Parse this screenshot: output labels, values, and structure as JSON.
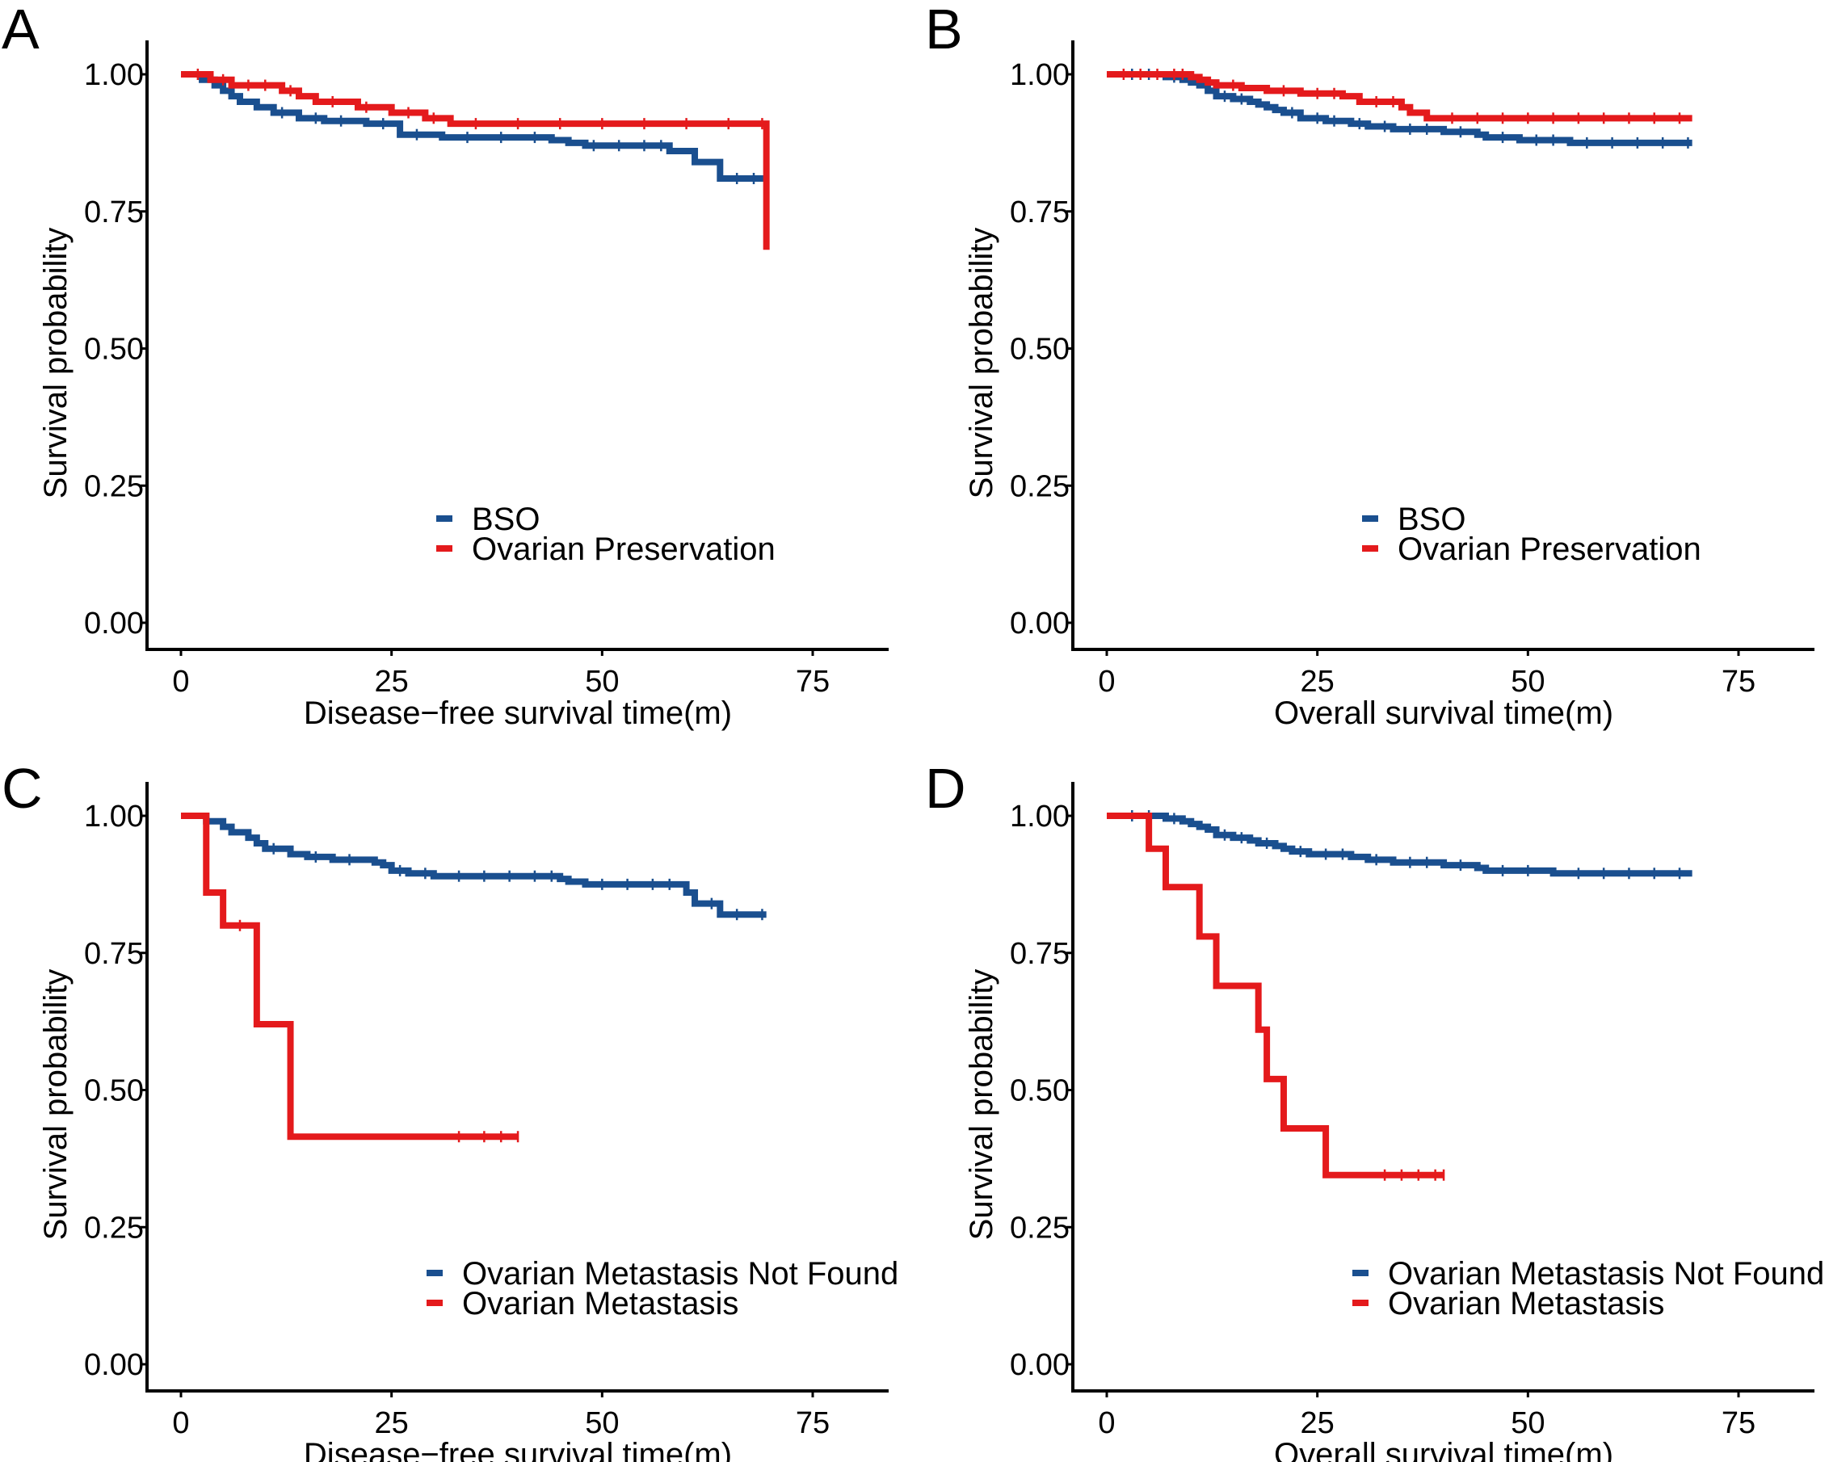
{
  "colors": {
    "series_0": "#1a4f8f",
    "series_1": "#e41a1c",
    "axis": "#000000"
  },
  "chart_data": [
    {
      "panel": "A",
      "type": "line",
      "subtype": "kaplan-meier",
      "xlabel": "Disease−free survival time(m)",
      "ylabel": "Survival probability",
      "xlim": [
        -6,
        83
      ],
      "ylim": [
        -0.03,
        1.07
      ],
      "xticks": [
        0,
        25,
        50,
        75
      ],
      "xtick_labels": [
        "0",
        "25",
        "50",
        "75"
      ],
      "yticks": [
        0,
        0.25,
        0.5,
        0.75,
        1.0
      ],
      "ytick_labels": [
        "0.00",
        "0.25",
        "0.50",
        "0.75",
        "1.00"
      ],
      "legend_position": "right-middle",
      "series": [
        {
          "name": "BSO",
          "color": "#1a4f8f",
          "steps": [
            [
              0,
              1.0
            ],
            [
              2.5,
              0.99
            ],
            [
              4,
              0.98
            ],
            [
              5,
              0.97
            ],
            [
              6,
              0.96
            ],
            [
              7,
              0.95
            ],
            [
              9,
              0.94
            ],
            [
              11,
              0.93
            ],
            [
              14,
              0.92
            ],
            [
              17,
              0.915
            ],
            [
              22,
              0.91
            ],
            [
              26,
              0.89
            ],
            [
              31,
              0.885
            ],
            [
              44,
              0.88
            ],
            [
              46,
              0.875
            ],
            [
              48,
              0.87
            ],
            [
              58,
              0.86
            ],
            [
              61,
              0.84
            ],
            [
              64,
              0.81
            ],
            [
              69.5,
              0.81
            ]
          ],
          "censor_x": [
            12,
            16,
            19,
            24,
            28,
            34,
            38,
            42,
            49,
            52,
            55,
            57,
            66,
            68
          ]
        },
        {
          "name": "Ovarian Preservation",
          "color": "#e41a1c",
          "steps": [
            [
              0,
              1.0
            ],
            [
              3.5,
              0.99
            ],
            [
              6,
              0.98
            ],
            [
              12,
              0.97
            ],
            [
              14,
              0.96
            ],
            [
              16,
              0.95
            ],
            [
              21,
              0.94
            ],
            [
              25,
              0.93
            ],
            [
              29,
              0.92
            ],
            [
              32,
              0.91
            ],
            [
              69.5,
              0.91
            ],
            [
              69.5,
              0.68
            ]
          ],
          "censor_x": [
            2,
            5,
            8,
            10,
            13,
            18,
            22,
            27,
            30,
            35,
            40,
            45,
            50,
            55,
            60,
            65,
            69
          ]
        }
      ]
    },
    {
      "panel": "B",
      "type": "line",
      "subtype": "kaplan-meier",
      "xlabel": "Overall survival time(m)",
      "ylabel": "Survival probability",
      "xlim": [
        -6,
        83
      ],
      "ylim": [
        -0.03,
        1.07
      ],
      "xticks": [
        0,
        25,
        50,
        75
      ],
      "xtick_labels": [
        "0",
        "25",
        "50",
        "75"
      ],
      "yticks": [
        0,
        0.25,
        0.5,
        0.75,
        1.0
      ],
      "ytick_labels": [
        "0.00",
        "0.25",
        "0.50",
        "0.75",
        "1.00"
      ],
      "legend_position": "right-middle",
      "series": [
        {
          "name": "BSO",
          "color": "#1a4f8f",
          "steps": [
            [
              0,
              1.0
            ],
            [
              7,
              0.995
            ],
            [
              9,
              0.99
            ],
            [
              10,
              0.985
            ],
            [
              11,
              0.98
            ],
            [
              12,
              0.97
            ],
            [
              13,
              0.96
            ],
            [
              15,
              0.955
            ],
            [
              17,
              0.95
            ],
            [
              18,
              0.945
            ],
            [
              19,
              0.94
            ],
            [
              20,
              0.935
            ],
            [
              21,
              0.93
            ],
            [
              23,
              0.92
            ],
            [
              26,
              0.915
            ],
            [
              29,
              0.91
            ],
            [
              31,
              0.905
            ],
            [
              34,
              0.9
            ],
            [
              40,
              0.895
            ],
            [
              44,
              0.89
            ],
            [
              45,
              0.885
            ],
            [
              49,
              0.88
            ],
            [
              55,
              0.875
            ],
            [
              69.5,
              0.875
            ]
          ],
          "censor_x": [
            3,
            5,
            8,
            14,
            16,
            22,
            25,
            27,
            30,
            33,
            36,
            38,
            42,
            47,
            51,
            53,
            57,
            60,
            63,
            66,
            69
          ]
        },
        {
          "name": "Ovarian Preservation",
          "color": "#e41a1c",
          "steps": [
            [
              0,
              1.0
            ],
            [
              10,
              0.995
            ],
            [
              11,
              0.99
            ],
            [
              12,
              0.985
            ],
            [
              13,
              0.98
            ],
            [
              16,
              0.975
            ],
            [
              19,
              0.97
            ],
            [
              23,
              0.965
            ],
            [
              28,
              0.96
            ],
            [
              30,
              0.95
            ],
            [
              35,
              0.94
            ],
            [
              36,
              0.93
            ],
            [
              38,
              0.92
            ],
            [
              69.5,
              0.92
            ]
          ],
          "censor_x": [
            2,
            4,
            6,
            8,
            9,
            15,
            21,
            25,
            27,
            32,
            34,
            41,
            44,
            47,
            50,
            53,
            56,
            59,
            62,
            65,
            68
          ]
        }
      ]
    },
    {
      "panel": "C",
      "type": "line",
      "subtype": "kaplan-meier",
      "xlabel": "Disease−free survival time(m)",
      "ylabel": "Survival probability",
      "xlim": [
        -6,
        83
      ],
      "ylim": [
        -0.03,
        1.07
      ],
      "xticks": [
        0,
        25,
        50,
        75
      ],
      "xtick_labels": [
        "0",
        "25",
        "50",
        "75"
      ],
      "yticks": [
        0,
        0.25,
        0.5,
        0.75,
        1.0
      ],
      "ytick_labels": [
        "0.00",
        "0.25",
        "0.50",
        "0.75",
        "1.00"
      ],
      "legend_position": "right-bottom",
      "series": [
        {
          "name": "Ovarian Metastasis Not Found",
          "color": "#1a4f8f",
          "steps": [
            [
              0,
              1.0
            ],
            [
              3,
              0.99
            ],
            [
              5,
              0.98
            ],
            [
              6,
              0.97
            ],
            [
              8,
              0.96
            ],
            [
              9,
              0.95
            ],
            [
              10,
              0.94
            ],
            [
              13,
              0.93
            ],
            [
              15,
              0.925
            ],
            [
              18,
              0.92
            ],
            [
              23,
              0.915
            ],
            [
              24,
              0.91
            ],
            [
              25,
              0.9
            ],
            [
              27,
              0.895
            ],
            [
              30,
              0.89
            ],
            [
              45,
              0.885
            ],
            [
              46,
              0.88
            ],
            [
              48,
              0.875
            ],
            [
              60,
              0.86
            ],
            [
              61,
              0.84
            ],
            [
              64,
              0.82
            ],
            [
              69.5,
              0.82
            ]
          ],
          "censor_x": [
            11,
            16,
            20,
            26,
            29,
            33,
            36,
            39,
            42,
            44,
            50,
            53,
            56,
            58,
            63,
            66,
            69
          ]
        },
        {
          "name": "Ovarian Metastasis",
          "color": "#e41a1c",
          "steps": [
            [
              0,
              1.0
            ],
            [
              3,
              1.0
            ],
            [
              3,
              0.86
            ],
            [
              5,
              0.86
            ],
            [
              5,
              0.8
            ],
            [
              9,
              0.8
            ],
            [
              9,
              0.62
            ],
            [
              13,
              0.62
            ],
            [
              13,
              0.415
            ],
            [
              40,
              0.415
            ]
          ],
          "censor_x": [
            7,
            33,
            36,
            38,
            40
          ]
        }
      ]
    },
    {
      "panel": "D",
      "type": "line",
      "subtype": "kaplan-meier",
      "xlabel": "Overall survival time(m)",
      "ylabel": "Survival probability",
      "xlim": [
        -6,
        83
      ],
      "ylim": [
        -0.03,
        1.07
      ],
      "xticks": [
        0,
        25,
        50,
        75
      ],
      "xtick_labels": [
        "0",
        "25",
        "50",
        "75"
      ],
      "yticks": [
        0,
        0.25,
        0.5,
        0.75,
        1.0
      ],
      "ytick_labels": [
        "0.00",
        "0.25",
        "0.50",
        "0.75",
        "1.00"
      ],
      "legend_position": "right-bottom",
      "series": [
        {
          "name": "Ovarian Metastasis Not Found",
          "color": "#1a4f8f",
          "steps": [
            [
              0,
              1.0
            ],
            [
              7,
              0.995
            ],
            [
              9,
              0.99
            ],
            [
              10,
              0.985
            ],
            [
              11,
              0.98
            ],
            [
              12,
              0.975
            ],
            [
              13,
              0.965
            ],
            [
              15,
              0.96
            ],
            [
              17,
              0.955
            ],
            [
              18,
              0.95
            ],
            [
              20,
              0.945
            ],
            [
              21,
              0.94
            ],
            [
              22,
              0.935
            ],
            [
              24,
              0.93
            ],
            [
              29,
              0.925
            ],
            [
              31,
              0.92
            ],
            [
              34,
              0.915
            ],
            [
              40,
              0.91
            ],
            [
              44,
              0.905
            ],
            [
              45,
              0.9
            ],
            [
              53,
              0.895
            ],
            [
              69.5,
              0.895
            ]
          ],
          "censor_x": [
            3,
            5,
            8,
            14,
            16,
            19,
            23,
            26,
            28,
            32,
            36,
            38,
            42,
            47,
            50,
            56,
            59,
            62,
            65,
            68
          ]
        },
        {
          "name": "Ovarian Metastasis",
          "color": "#e41a1c",
          "steps": [
            [
              0,
              1.0
            ],
            [
              5,
              1.0
            ],
            [
              5,
              0.94
            ],
            [
              7,
              0.94
            ],
            [
              7,
              0.87
            ],
            [
              11,
              0.87
            ],
            [
              11,
              0.78
            ],
            [
              13,
              0.78
            ],
            [
              13,
              0.69
            ],
            [
              18,
              0.69
            ],
            [
              18,
              0.61
            ],
            [
              19,
              0.61
            ],
            [
              19,
              0.52
            ],
            [
              21,
              0.52
            ],
            [
              21,
              0.43
            ],
            [
              26,
              0.43
            ],
            [
              26,
              0.345
            ],
            [
              40,
              0.345
            ]
          ],
          "censor_x": [
            33,
            35,
            37,
            39,
            40
          ]
        }
      ]
    }
  ]
}
